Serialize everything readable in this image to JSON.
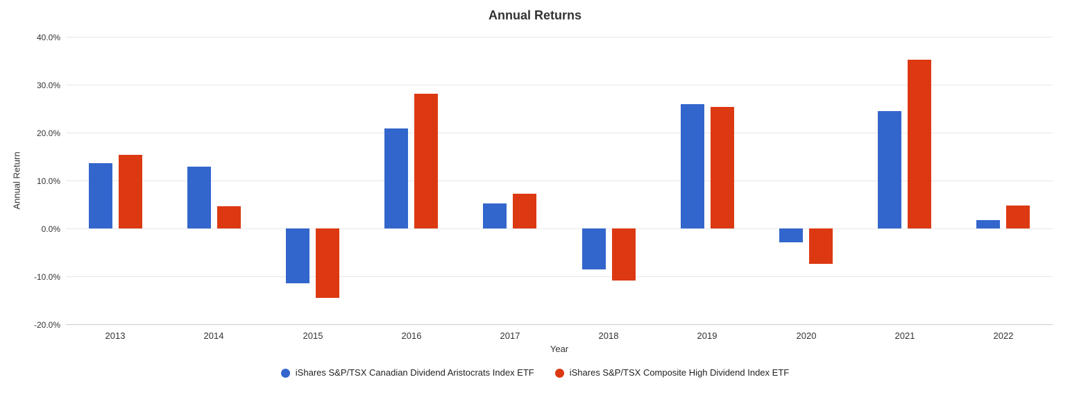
{
  "title": "Annual Returns",
  "colors": {
    "series_blue": "#3366cc",
    "series_red": "#dc3912",
    "grid": "#e6e6e6",
    "axis_line": "#c8ccd2",
    "title_text": "#333333",
    "tick_text": "#333333",
    "legend_text": "#222222",
    "background": "#ffffff"
  },
  "chart_data": {
    "type": "bar",
    "title": "Annual Returns",
    "xlabel": "Year",
    "ylabel": "Annual Return",
    "categories": [
      "2013",
      "2014",
      "2015",
      "2016",
      "2017",
      "2018",
      "2019",
      "2020",
      "2021",
      "2022"
    ],
    "series": [
      {
        "name": "iShares S&P/TSX Canadian Dividend Aristocrats Index ETF",
        "color": "#3366cc",
        "values": [
          13.6,
          12.9,
          -11.4,
          20.8,
          5.2,
          -8.6,
          25.9,
          -2.9,
          24.5,
          1.7
        ]
      },
      {
        "name": "iShares S&P/TSX Composite High Dividend Index ETF",
        "color": "#dc3912",
        "values": [
          15.3,
          4.7,
          -14.5,
          28.1,
          7.2,
          -10.8,
          25.4,
          -7.4,
          35.2,
          4.8
        ]
      }
    ],
    "ylim": [
      -20,
      40
    ],
    "ytick_step": 10,
    "ytick_labels": [
      "40.0%",
      "30.0%",
      "20.0%",
      "10.0%",
      "0.0%",
      "-10.0%",
      "-20.0%"
    ],
    "grid": true,
    "legend_position": "bottom"
  }
}
